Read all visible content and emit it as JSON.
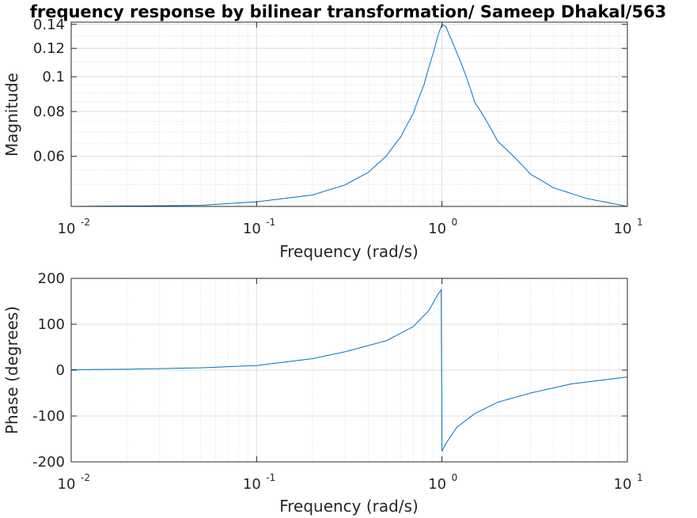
{
  "title": "frequency response by bilinear transformation/ Sameep Dhakal/563",
  "chart_data": [
    {
      "type": "line",
      "xscale": "log",
      "yscale": "log",
      "xlim": [
        0.01,
        10
      ],
      "ylim": [
        0.0435,
        0.142
      ],
      "xlabel": "Frequency (rad/s)",
      "ylabel": "Magnitude",
      "grid": true,
      "x_ticks": [
        {
          "base": "10",
          "exp": "-2",
          "value": 0.01
        },
        {
          "base": "10",
          "exp": "-1",
          "value": 0.1
        },
        {
          "base": "10",
          "exp": "0",
          "value": 1
        },
        {
          "base": "10",
          "exp": "1",
          "value": 10
        }
      ],
      "y_ticks": [
        {
          "label": "0.06",
          "value": 0.06
        },
        {
          "label": "0.08",
          "value": 0.08
        },
        {
          "label": "0.1",
          "value": 0.1
        },
        {
          "label": "0.12",
          "value": 0.12
        },
        {
          "label": "0.14",
          "value": 0.14
        }
      ],
      "series": [
        {
          "color": "#0072bd",
          "x": [
            0.01,
            0.05,
            0.1,
            0.2,
            0.3,
            0.4,
            0.5,
            0.6,
            0.7,
            0.8,
            0.9,
            0.95,
            1.0,
            1.05,
            1.1,
            1.2,
            1.5,
            2,
            3,
            4,
            6,
            10
          ],
          "y": [
            0.0435,
            0.0438,
            0.0448,
            0.0468,
            0.0499,
            0.0541,
            0.06,
            0.068,
            0.079,
            0.095,
            0.117,
            0.13,
            0.14,
            0.138,
            0.13,
            0.117,
            0.085,
            0.066,
            0.0535,
            0.049,
            0.0458,
            0.0435
          ]
        }
      ]
    },
    {
      "type": "line",
      "xscale": "log",
      "xlim": [
        0.01,
        10
      ],
      "ylim": [
        -200,
        200
      ],
      "xlabel": "Frequency (rad/s)",
      "ylabel": "Phase (degrees)",
      "grid": true,
      "x_ticks": [
        {
          "base": "10",
          "exp": "-2",
          "value": 0.01
        },
        {
          "base": "10",
          "exp": "-1",
          "value": 0.1
        },
        {
          "base": "10",
          "exp": "0",
          "value": 1
        },
        {
          "base": "10",
          "exp": "1",
          "value": 10
        }
      ],
      "y_ticks": [
        {
          "label": "-200",
          "value": -200
        },
        {
          "label": "-100",
          "value": -100
        },
        {
          "label": "0",
          "value": 0
        },
        {
          "label": "100",
          "value": 100
        },
        {
          "label": "200",
          "value": 200
        }
      ],
      "series": [
        {
          "color": "#0072bd",
          "x": [
            0.01,
            0.02,
            0.05,
            0.1,
            0.2,
            0.3,
            0.5,
            0.7,
            0.85,
            0.95,
            0.99,
            1.0,
            1.05,
            1.2,
            1.5,
            2,
            3,
            5,
            10
          ],
          "y": [
            1,
            2,
            5,
            10,
            25,
            40,
            64,
            95,
            130,
            165,
            175,
            -177,
            -160,
            -125,
            -95,
            -70,
            -50,
            -30,
            -15
          ]
        }
      ]
    }
  ]
}
